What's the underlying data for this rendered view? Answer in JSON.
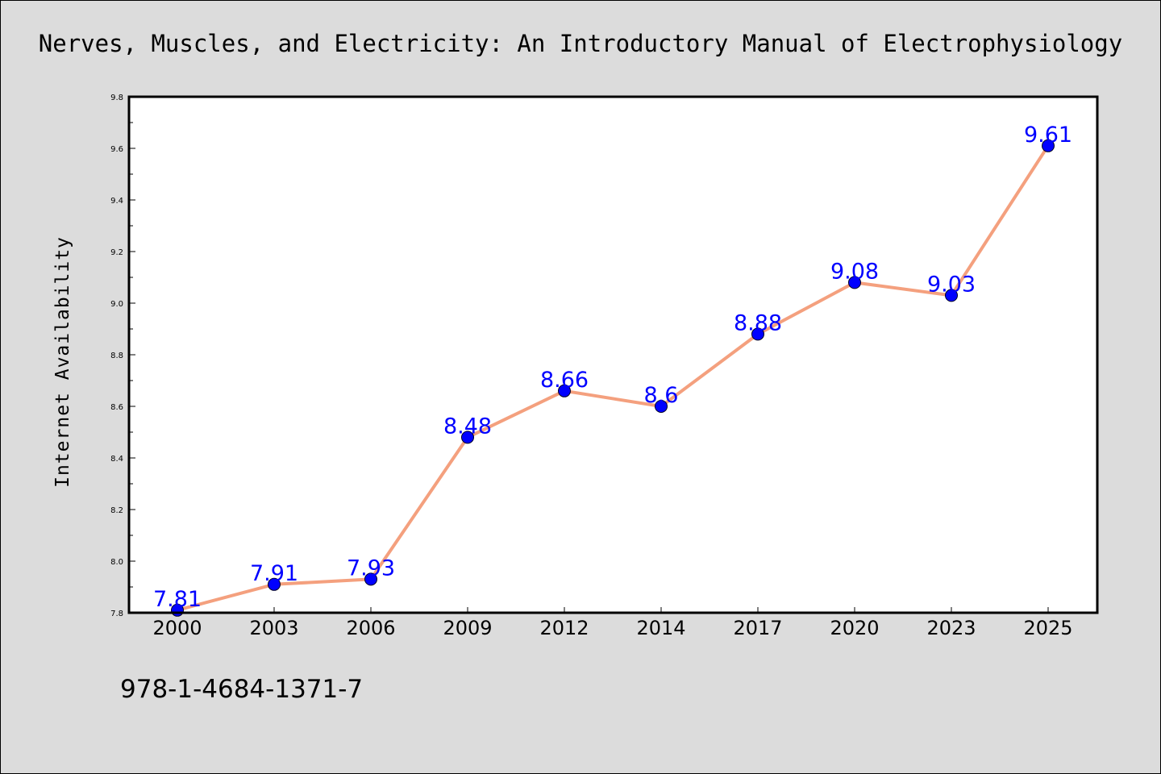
{
  "chart_data": {
    "type": "line",
    "title": "Nerves, Muscles, and Electricity: An Introductory Manual of Electrophysiology",
    "xlabel": "",
    "ylabel": "Internet Availability",
    "categories": [
      "2000",
      "2003",
      "2006",
      "2009",
      "2012",
      "2014",
      "2017",
      "2020",
      "2023",
      "2025"
    ],
    "values": [
      7.81,
      7.91,
      7.93,
      8.48,
      8.66,
      8.6,
      8.88,
      9.08,
      9.03,
      9.61
    ],
    "data_labels": [
      "7.81",
      "7.91",
      "7.93",
      "8.48",
      "8.66",
      "8.6",
      "8.88",
      "9.08",
      "9.03",
      "9.61"
    ],
    "ylim": [
      7.8,
      9.8
    ],
    "yticks": [
      "7.8",
      "8.0",
      "8.2",
      "8.4",
      "8.6",
      "8.8",
      "9.0",
      "9.2",
      "9.4",
      "9.6",
      "9.8"
    ],
    "grid": false,
    "legend": "none",
    "colors": {
      "line": "#f4a07e",
      "marker": "#0000ff",
      "label": "#0000ff",
      "background": "#dcdcdc",
      "plot_background": "#ffffff"
    }
  },
  "footer": {
    "isbn": "978-1-4684-1371-7"
  }
}
